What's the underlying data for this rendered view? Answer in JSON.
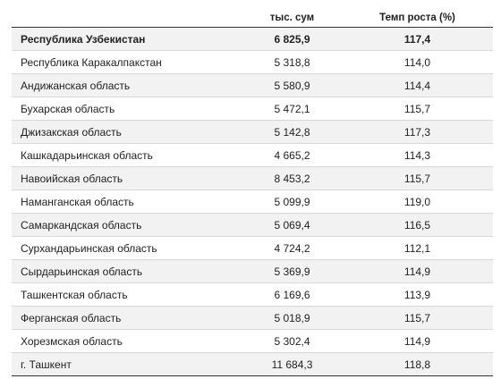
{
  "table": {
    "headers": {
      "region": "",
      "value": "тыс. сум",
      "growth": "Темп роста (%)"
    },
    "rows": [
      {
        "region": "Республика Узбекистан",
        "value": "6 825,9",
        "growth": "117,4",
        "bold": true
      },
      {
        "region": "Республика Каракалпакстан",
        "value": "5 318,8",
        "growth": "114,0"
      },
      {
        "region": "Андижанская область",
        "value": "5 580,9",
        "growth": "114,4"
      },
      {
        "region": "Бухарская область",
        "value": "5 472,1",
        "growth": "115,7"
      },
      {
        "region": "Джизакская область",
        "value": "5 142,8",
        "growth": "117,3"
      },
      {
        "region": "Кашкадарьинская область",
        "value": "4 665,2",
        "growth": "114,3"
      },
      {
        "region": "Навоийская область",
        "value": "8 453,2",
        "growth": "115,7"
      },
      {
        "region": "Наманганская область",
        "value": "5 099,9",
        "growth": "119,0"
      },
      {
        "region": "Самаркандская область",
        "value": "5 069,4",
        "growth": "116,5"
      },
      {
        "region": "Сурхандарьинская область",
        "value": "4 724,2",
        "growth": "112,1"
      },
      {
        "region": "Сырдарьинская область",
        "value": "5 369,9",
        "growth": "114,9"
      },
      {
        "region": "Ташкентская область",
        "value": "6 169,6",
        "growth": "113,9"
      },
      {
        "region": "Ферганская область",
        "value": "5 018,9",
        "growth": "115,7"
      },
      {
        "region": "Хорезмская область",
        "value": "5 302,4",
        "growth": "114,9"
      },
      {
        "region": "г. Ташкент",
        "value": "11 684,3",
        "growth": "118,8"
      }
    ]
  }
}
